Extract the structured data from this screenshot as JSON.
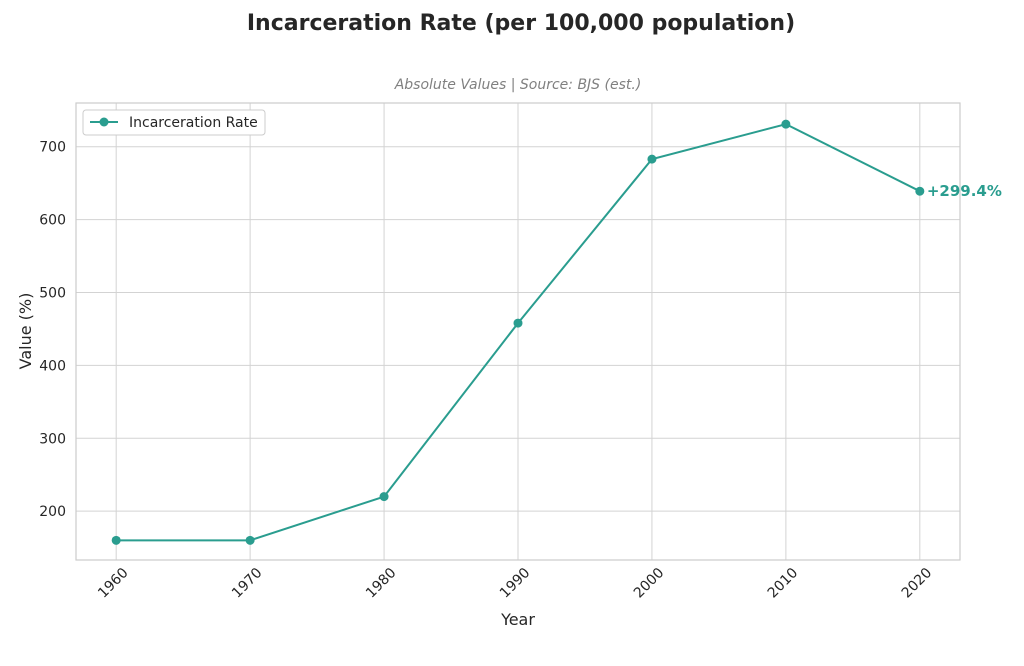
{
  "chart_data": {
    "type": "line",
    "title": "Incarceration Rate (per 100,000 population)",
    "subtitle": "Absolute Values | Source: BJS (est.)",
    "xlabel": "Year",
    "ylabel": "Value (%)",
    "x": [
      1960,
      1970,
      1980,
      1990,
      2000,
      2010,
      2020
    ],
    "xlim": [
      1957,
      2023
    ],
    "ylim": [
      133,
      760
    ],
    "yticks": [
      200,
      300,
      400,
      500,
      600,
      700
    ],
    "grid": true,
    "legend_position": "top-left",
    "series": [
      {
        "name": "Incarceration Rate",
        "color": "#2a9d8f",
        "values": [
          160,
          160,
          220,
          458,
          683,
          731,
          639
        ]
      }
    ],
    "annotations": [
      {
        "text": "+299.4%",
        "x": 2020,
        "y": 639,
        "color": "#2a9d8f"
      }
    ]
  }
}
